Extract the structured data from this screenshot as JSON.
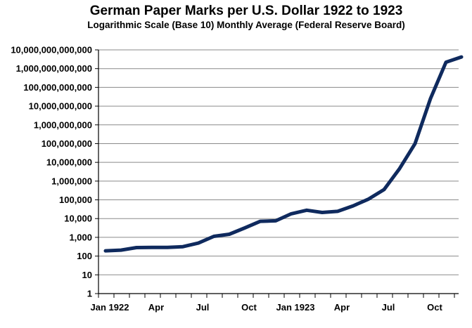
{
  "chart_data": {
    "type": "line",
    "title": "German Paper Marks per U.S. Dollar 1922 to 1923",
    "subtitle": "Logarithmic Scale (Base 10) Monthly Average (Federal Reserve Board)",
    "xlabel": "",
    "ylabel": "",
    "y_scale": "log10",
    "ylim": [
      1,
      10000000000000
    ],
    "grid": true,
    "legend": "none",
    "line_color": "#0f2a5e",
    "y_ticks": [
      {
        "value": 1,
        "label": "1"
      },
      {
        "value": 10,
        "label": "10"
      },
      {
        "value": 100,
        "label": "100"
      },
      {
        "value": 1000,
        "label": "1,000"
      },
      {
        "value": 10000,
        "label": "10,000"
      },
      {
        "value": 100000,
        "label": "100,000"
      },
      {
        "value": 1000000,
        "label": "1,000,000"
      },
      {
        "value": 10000000,
        "label": "10,000,000"
      },
      {
        "value": 100000000,
        "label": "100,000,000"
      },
      {
        "value": 1000000000,
        "label": "1,000,000,000"
      },
      {
        "value": 10000000000,
        "label": "10,000,000,000"
      },
      {
        "value": 100000000000,
        "label": "100,000,000,000"
      },
      {
        "value": 1000000000000,
        "label": "1,000,000,000,000"
      },
      {
        "value": 10000000000000,
        "label": "10,000,000,000,000"
      }
    ],
    "x_ticks": [
      {
        "index": 0,
        "label": "Jan 1922"
      },
      {
        "index": 3,
        "label": "Apr"
      },
      {
        "index": 6,
        "label": "Jul"
      },
      {
        "index": 9,
        "label": "Oct"
      },
      {
        "index": 12,
        "label": "Jan 1923"
      },
      {
        "index": 15,
        "label": "Apr"
      },
      {
        "index": 18,
        "label": "Jul"
      },
      {
        "index": 21,
        "label": "Oct"
      }
    ],
    "categories": [
      "Jan 1922",
      "Feb 1922",
      "Mar 1922",
      "Apr 1922",
      "May 1922",
      "Jun 1922",
      "Jul 1922",
      "Aug 1922",
      "Sep 1922",
      "Oct 1922",
      "Nov 1922",
      "Dec 1922",
      "Jan 1923",
      "Feb 1923",
      "Mar 1923",
      "Apr 1923",
      "May 1923",
      "Jun 1923",
      "Jul 1923",
      "Aug 1923",
      "Sep 1923",
      "Oct 1923",
      "Nov 1923",
      "Dec 1923"
    ],
    "values": [
      192,
      208,
      285,
      291,
      290,
      318,
      493,
      1135,
      1465,
      3181,
      7183,
      7590,
      17972,
      27918,
      21190,
      24457,
      47670,
      109996,
      353412,
      4620455,
      98860000,
      25260208000,
      2193600000000,
      4200000000000
    ]
  }
}
